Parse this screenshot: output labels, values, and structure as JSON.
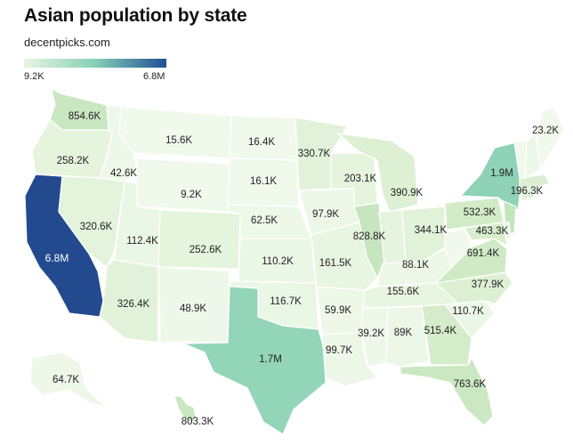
{
  "header": {
    "title": "Asian population by state",
    "subtitle": "decentpicks.com"
  },
  "legend": {
    "min_label": "9.2K",
    "max_label": "6.8M",
    "color_low": "#e8f5e1",
    "color_mid": "#86d0b6",
    "color_high": "#1f4f96"
  },
  "states": {
    "WA": {
      "label": "854.6K",
      "color": "#c9e7c0"
    },
    "OR": {
      "label": "258.2K",
      "color": "#e6f4de"
    },
    "CA": {
      "label": "6.8M",
      "color": "#234a8f"
    },
    "NV": {
      "label": "320.6K",
      "color": "#e3f3dc"
    },
    "ID": {
      "label": "42.6K",
      "color": "#eef8ea"
    },
    "MT": {
      "label": "15.6K",
      "color": "#f0f9ec"
    },
    "WY": {
      "label": "9.2K",
      "color": "#f1f9ed"
    },
    "UT": {
      "label": "112.4K",
      "color": "#ebf7e6"
    },
    "AZ": {
      "label": "326.4K",
      "color": "#e2f2da"
    },
    "CO": {
      "label": "252.6K",
      "color": "#e5f4dd"
    },
    "NM": {
      "label": "48.9K",
      "color": "#eef8ea"
    },
    "ND": {
      "label": "16.4K",
      "color": "#f0f9ec"
    },
    "SD": {
      "label": "16.1K",
      "color": "#f0f9ec"
    },
    "NE": {
      "label": "62.5K",
      "color": "#edf8e9"
    },
    "KS": {
      "label": "110.2K",
      "color": "#ebf7e6"
    },
    "OK": {
      "label": "116.7K",
      "color": "#ebf7e6"
    },
    "TX": {
      "label": "1.7M",
      "color": "#93d5b8"
    },
    "MN": {
      "label": "330.7K",
      "color": "#e2f2da"
    },
    "IA": {
      "label": "97.9K",
      "color": "#ecf7e8"
    },
    "MO": {
      "label": "161.5K",
      "color": "#e8f5e1"
    },
    "AR": {
      "label": "59.9K",
      "color": "#edf8e9"
    },
    "LA": {
      "label": "99.7K",
      "color": "#ecf7e8"
    },
    "WI": {
      "label": "203.1K",
      "color": "#e6f4de"
    },
    "IL": {
      "label": "828.8K",
      "color": "#c7e6bf"
    },
    "MI": {
      "label": "390.9K",
      "color": "#ddf0d4"
    },
    "IN": {
      "label": "",
      "color": "#e6f4de"
    },
    "OH": {
      "label": "344.1K",
      "color": "#e1f2d9"
    },
    "KY": {
      "label": "88.1K",
      "color": "#ecf7e8"
    },
    "TN": {
      "label": "155.6K",
      "color": "#e8f5e1"
    },
    "MS": {
      "label": "39.2K",
      "color": "#eef8ea"
    },
    "AL": {
      "label": "89K",
      "color": "#ecf7e8"
    },
    "GA": {
      "label": "515.4K",
      "color": "#d4ecc9"
    },
    "FL": {
      "label": "763.6K",
      "color": "#cbe8c2"
    },
    "SC": {
      "label": "110.7K",
      "color": "#ebf7e6"
    },
    "NC": {
      "label": "377.9K",
      "color": "#ddf0d4"
    },
    "VA": {
      "label": "691.4K",
      "color": "#cfeac5"
    },
    "WV": {
      "label": "",
      "color": "#f0f9ec"
    },
    "PA": {
      "label": "532.3K",
      "color": "#d3ecc8"
    },
    "NY": {
      "label": "1.9M",
      "color": "#8ed2b8"
    },
    "NJ": {
      "label": "",
      "color": "#c3e5bb"
    },
    "MD": {
      "label": "463.3K",
      "color": "#d8eecd"
    },
    "DE": {
      "label": "",
      "color": "#eaf6e4"
    },
    "CT": {
      "label": "",
      "color": "#e3f3dc"
    },
    "RI": {
      "label": "",
      "color": "#eef8ea"
    },
    "MA": {
      "label": "196.3K",
      "color": "#dcefd3"
    },
    "VT": {
      "label": "",
      "color": "#f0f9ec"
    },
    "NH": {
      "label": "",
      "color": "#eef8ea"
    },
    "ME": {
      "label": "23.2K",
      "color": "#f0f9ec"
    },
    "AK": {
      "label": "64.7K",
      "color": "#edf8e9"
    },
    "HI": {
      "label": "803.3K",
      "color": "#c9e7c0"
    }
  }
}
